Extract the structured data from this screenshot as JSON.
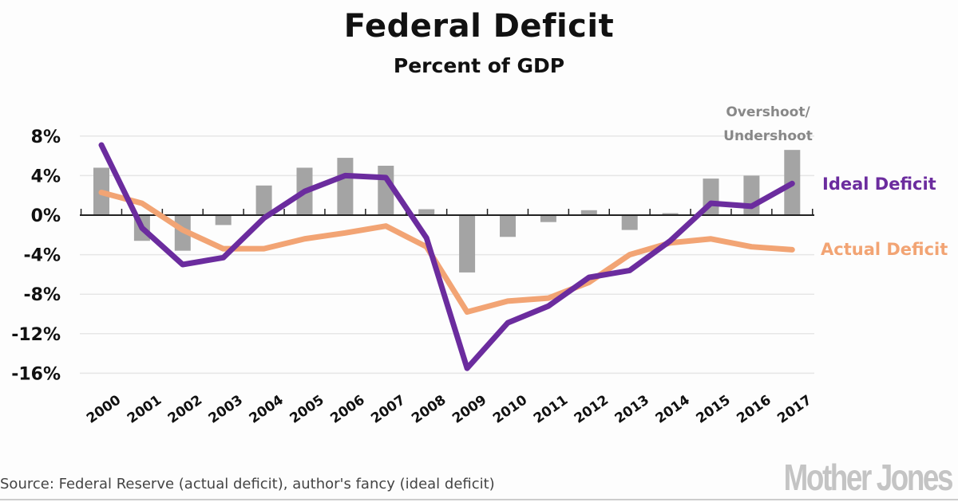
{
  "chart_data": {
    "type": "bar+line",
    "title": "Federal Deficit",
    "subtitle": "Percent of GDP",
    "categories": [
      "2000",
      "2001",
      "2002",
      "2003",
      "2004",
      "2005",
      "2006",
      "2007",
      "2008",
      "2009",
      "2010",
      "2011",
      "2012",
      "2013",
      "2014",
      "2015",
      "2016",
      "2017"
    ],
    "ylim": [
      -16,
      8
    ],
    "yticks": [
      8,
      4,
      0,
      -4,
      -8,
      -12,
      -16
    ],
    "ytick_labels": [
      "8%",
      "4%",
      "0%",
      "-4%",
      "-8%",
      "-12%",
      "-16%"
    ],
    "grid": true,
    "series": [
      {
        "name": "Overshoot/ Undershoot",
        "label_line1": "Overshoot/",
        "label_line2": "Undershoot",
        "type": "bar",
        "color": "#a4a4a4",
        "values": [
          4.8,
          -2.6,
          -3.6,
          -1.0,
          3.0,
          4.8,
          5.8,
          5.0,
          0.6,
          -5.8,
          -2.2,
          -0.7,
          0.5,
          -1.5,
          0.2,
          3.7,
          4.0,
          6.6
        ]
      },
      {
        "name": "Actual Deficit",
        "type": "line",
        "color": "#f2a474",
        "values": [
          2.3,
          1.2,
          -1.5,
          -3.4,
          -3.4,
          -2.4,
          -1.8,
          -1.1,
          -3.2,
          -9.8,
          -8.7,
          -8.4,
          -6.8,
          -4.0,
          -2.8,
          -2.4,
          -3.2,
          -3.5
        ]
      },
      {
        "name": "Ideal Deficit",
        "type": "line",
        "color": "#6b2c9e",
        "values": [
          7.1,
          -1.3,
          -5.0,
          -4.3,
          -0.3,
          2.4,
          4.0,
          3.8,
          -2.3,
          -15.5,
          -10.9,
          -9.2,
          -6.3,
          -5.6,
          -2.6,
          1.2,
          0.9,
          3.2
        ]
      }
    ]
  },
  "source": "Source: Federal Reserve (actual deficit), author's fancy (ideal deficit)",
  "logo": "Mother Jones"
}
